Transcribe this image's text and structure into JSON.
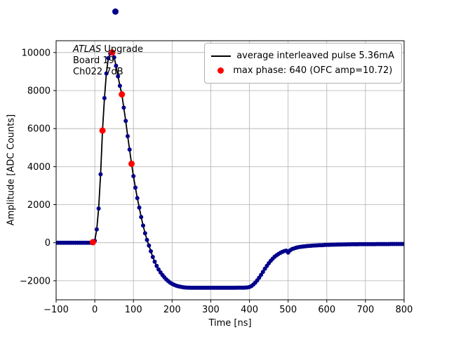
{
  "figure": {
    "background": "#ffffff",
    "annotation": {
      "atlas": "ATLAS",
      "upgrade": " Upgrade",
      "line2": "Board 19",
      "line3": "Ch022 7dB"
    },
    "xlabel": "Time [ns]",
    "ylabel": "Amplitude [ADC Counts]",
    "legend": {
      "entries": [
        {
          "marker": "black-line",
          "label": "average interleaved pulse 5.36mA"
        },
        {
          "marker": "red-dot",
          "label": "max phase: 640 (OFC amp=10.72)"
        }
      ]
    }
  },
  "chart_data": {
    "type": "scatter",
    "title": "",
    "xlabel": "Time [ns]",
    "ylabel": "Amplitude [ADC Counts]",
    "xlim": [
      -100,
      800
    ],
    "ylim": [
      -3000,
      10620
    ],
    "x_ticks": [
      -100,
      0,
      100,
      200,
      300,
      400,
      500,
      600,
      700,
      800
    ],
    "y_ticks": [
      -2000,
      0,
      2000,
      4000,
      6000,
      8000,
      10000
    ],
    "grid": true,
    "legend_position": "upper right",
    "colors": {
      "grid": "#b0b0b0",
      "line": "#000000",
      "marker": "#00008b",
      "sample": "#ff0000"
    },
    "series": [
      {
        "name": "average interleaved pulse 5.36mA",
        "style": "line+markers",
        "x_start": -100,
        "x_step": 5,
        "values": [
          0,
          0,
          0,
          0,
          0,
          0,
          0,
          0,
          0,
          0,
          0,
          0,
          0,
          0,
          0,
          0,
          0,
          0,
          0,
          0,
          100,
          700,
          1800,
          3600,
          5900,
          7600,
          8900,
          9700,
          9950,
          10000,
          9750,
          9300,
          8750,
          8250,
          7800,
          7100,
          6400,
          5600,
          4900,
          4150,
          3500,
          2900,
          2350,
          1850,
          1350,
          900,
          500,
          150,
          -150,
          -450,
          -750,
          -1000,
          -1220,
          -1400,
          -1560,
          -1700,
          -1820,
          -1930,
          -2020,
          -2100,
          -2160,
          -2210,
          -2250,
          -2285,
          -2310,
          -2330,
          -2345,
          -2355,
          -2360,
          -2365,
          -2370,
          -2370,
          -2370,
          -2370,
          -2370,
          -2370,
          -2370,
          -2370,
          -2370,
          -2370,
          -2370,
          -2370,
          -2370,
          -2370,
          -2370,
          -2370,
          -2370,
          -2370,
          -2370,
          -2370,
          -2370,
          -2370,
          -2370,
          -2368,
          -2366,
          -2364,
          -2362,
          -2360,
          -2356,
          -2350,
          -2330,
          -2280,
          -2200,
          -2100,
          -1980,
          -1840,
          -1690,
          -1530,
          -1370,
          -1220,
          -1080,
          -950,
          -840,
          -740,
          -660,
          -590,
          -530,
          -480,
          -440,
          -415,
          -520,
          -400,
          -340,
          -300,
          -268,
          -244,
          -224,
          -208,
          -195,
          -184,
          -174,
          -165,
          -158,
          -151,
          -144,
          -138,
          -133,
          -128,
          -123,
          -118,
          -114,
          -110,
          -107,
          -104,
          -101,
          -98,
          -96,
          -93,
          -91,
          -89,
          -87,
          -85,
          -84,
          -82,
          -81,
          -80,
          -79,
          -78,
          -77,
          -76,
          -75,
          -74,
          -74,
          -73,
          -72,
          -72,
          -71,
          -70,
          -70,
          -69,
          -69,
          -68,
          -68,
          -67,
          -67,
          -66,
          -66,
          -65,
          -65,
          -65,
          -64
        ]
      },
      {
        "name": "max phase: 640 (OFC amp=10.72)",
        "style": "markers",
        "points": [
          [
            -5,
            30
          ],
          [
            20,
            5900
          ],
          [
            45,
            10000
          ],
          [
            70,
            7800
          ],
          [
            95,
            4150
          ]
        ]
      }
    ]
  }
}
